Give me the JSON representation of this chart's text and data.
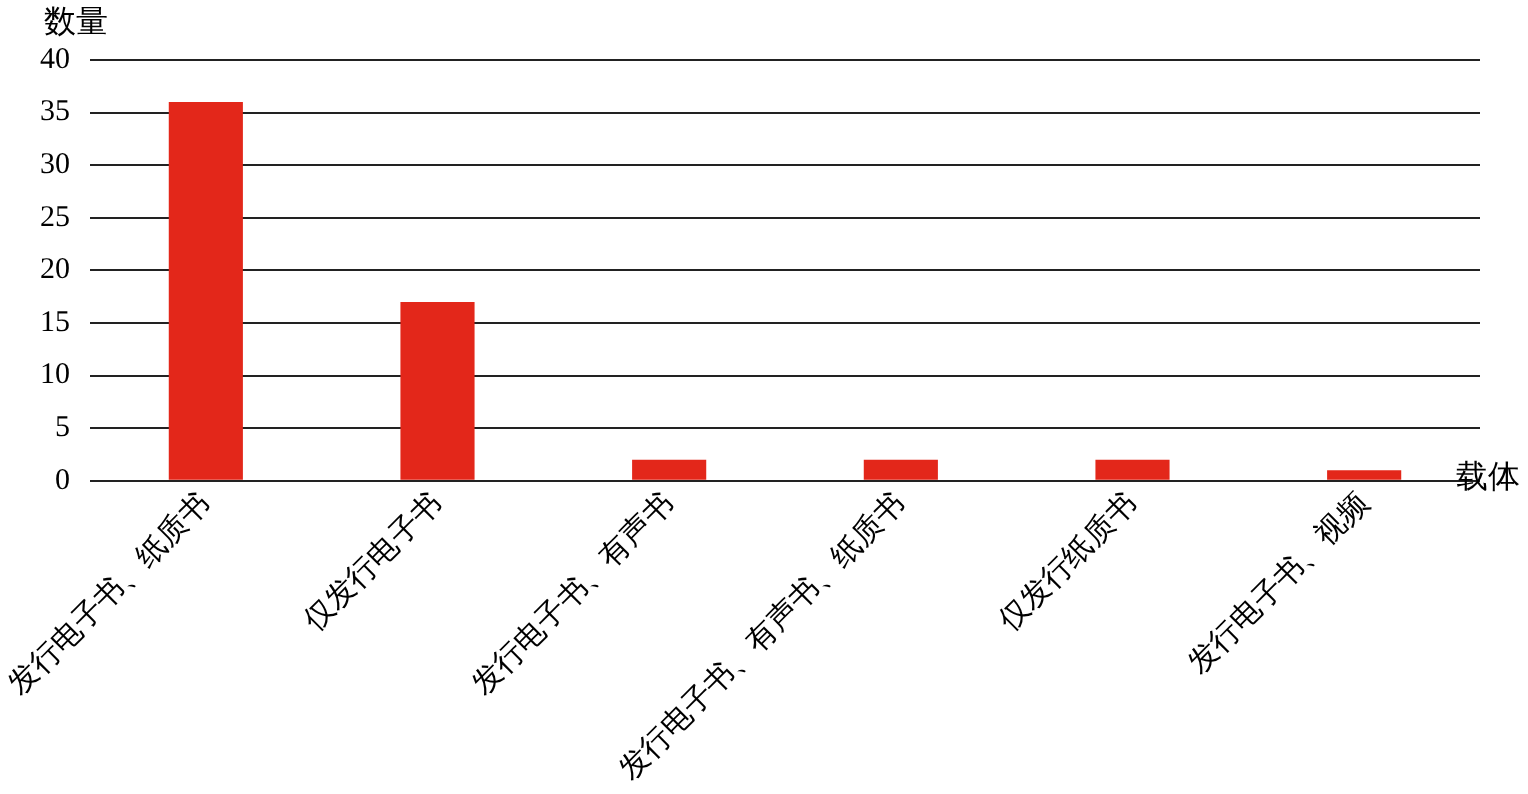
{
  "chart_data": {
    "type": "bar",
    "xlabel": "载体",
    "ylabel": "数量",
    "categories": [
      "发行电子书、纸质书",
      "仅发行电子书",
      "发行电子书、有声书",
      "发行电子书、有声书、纸质书",
      "仅发行纸质书",
      "发行电子书、视频"
    ],
    "values": [
      36,
      17,
      2,
      2,
      2,
      1
    ],
    "color": "#e3271a",
    "ylim": [
      0,
      40
    ],
    "yticks": [
      0,
      5,
      10,
      15,
      20,
      25,
      30,
      35,
      40
    ],
    "grid": "y",
    "legend": false
  }
}
